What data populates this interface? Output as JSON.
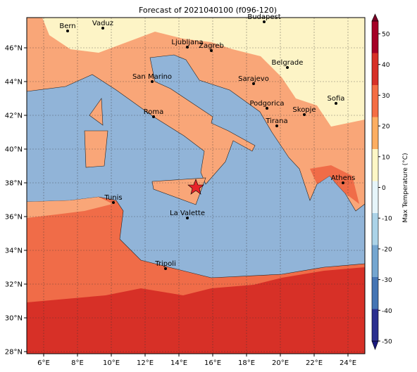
{
  "map": {
    "title": "Forecast of 2021040100 (f096-120)",
    "xticks": [
      {
        "value": 6,
        "label": "6°E"
      },
      {
        "value": 8,
        "label": "8°E"
      },
      {
        "value": 10,
        "label": "10°E"
      },
      {
        "value": 12,
        "label": "12°E"
      },
      {
        "value": 14,
        "label": "14°E"
      },
      {
        "value": 16,
        "label": "16°E"
      },
      {
        "value": 18,
        "label": "18°E"
      },
      {
        "value": 20,
        "label": "20°E"
      },
      {
        "value": 22,
        "label": "22°E"
      },
      {
        "value": 24,
        "label": "24°E"
      }
    ],
    "yticks": [
      {
        "value": 46,
        "label": "46°N"
      },
      {
        "value": 44,
        "label": "44°N"
      },
      {
        "value": 42,
        "label": "42°N"
      },
      {
        "value": 40,
        "label": "40°N"
      },
      {
        "value": 38,
        "label": "38°N"
      },
      {
        "value": 36,
        "label": "36°N"
      },
      {
        "value": 34,
        "label": "34°N"
      },
      {
        "value": 32,
        "label": "32°N"
      },
      {
        "value": 30,
        "label": "30°N"
      },
      {
        "value": 28,
        "label": "28°N"
      }
    ],
    "cities": [
      "Bern",
      "Vaduz",
      "Budapest",
      "Ljubljana",
      "Zagreb",
      "Belgrade",
      "Sarajevo",
      "San Marino",
      "Sofia",
      "Podgorica",
      "Skopje",
      "Roma",
      "Tirana",
      "Athens",
      "Tunis",
      "La Valette",
      "Tripoli"
    ],
    "colorbar": {
      "label": "Max Temperature (°C)",
      "ticks": [
        50,
        40,
        30,
        20,
        10,
        0,
        -10,
        -20,
        -30,
        -40,
        -50
      ]
    }
  }
}
